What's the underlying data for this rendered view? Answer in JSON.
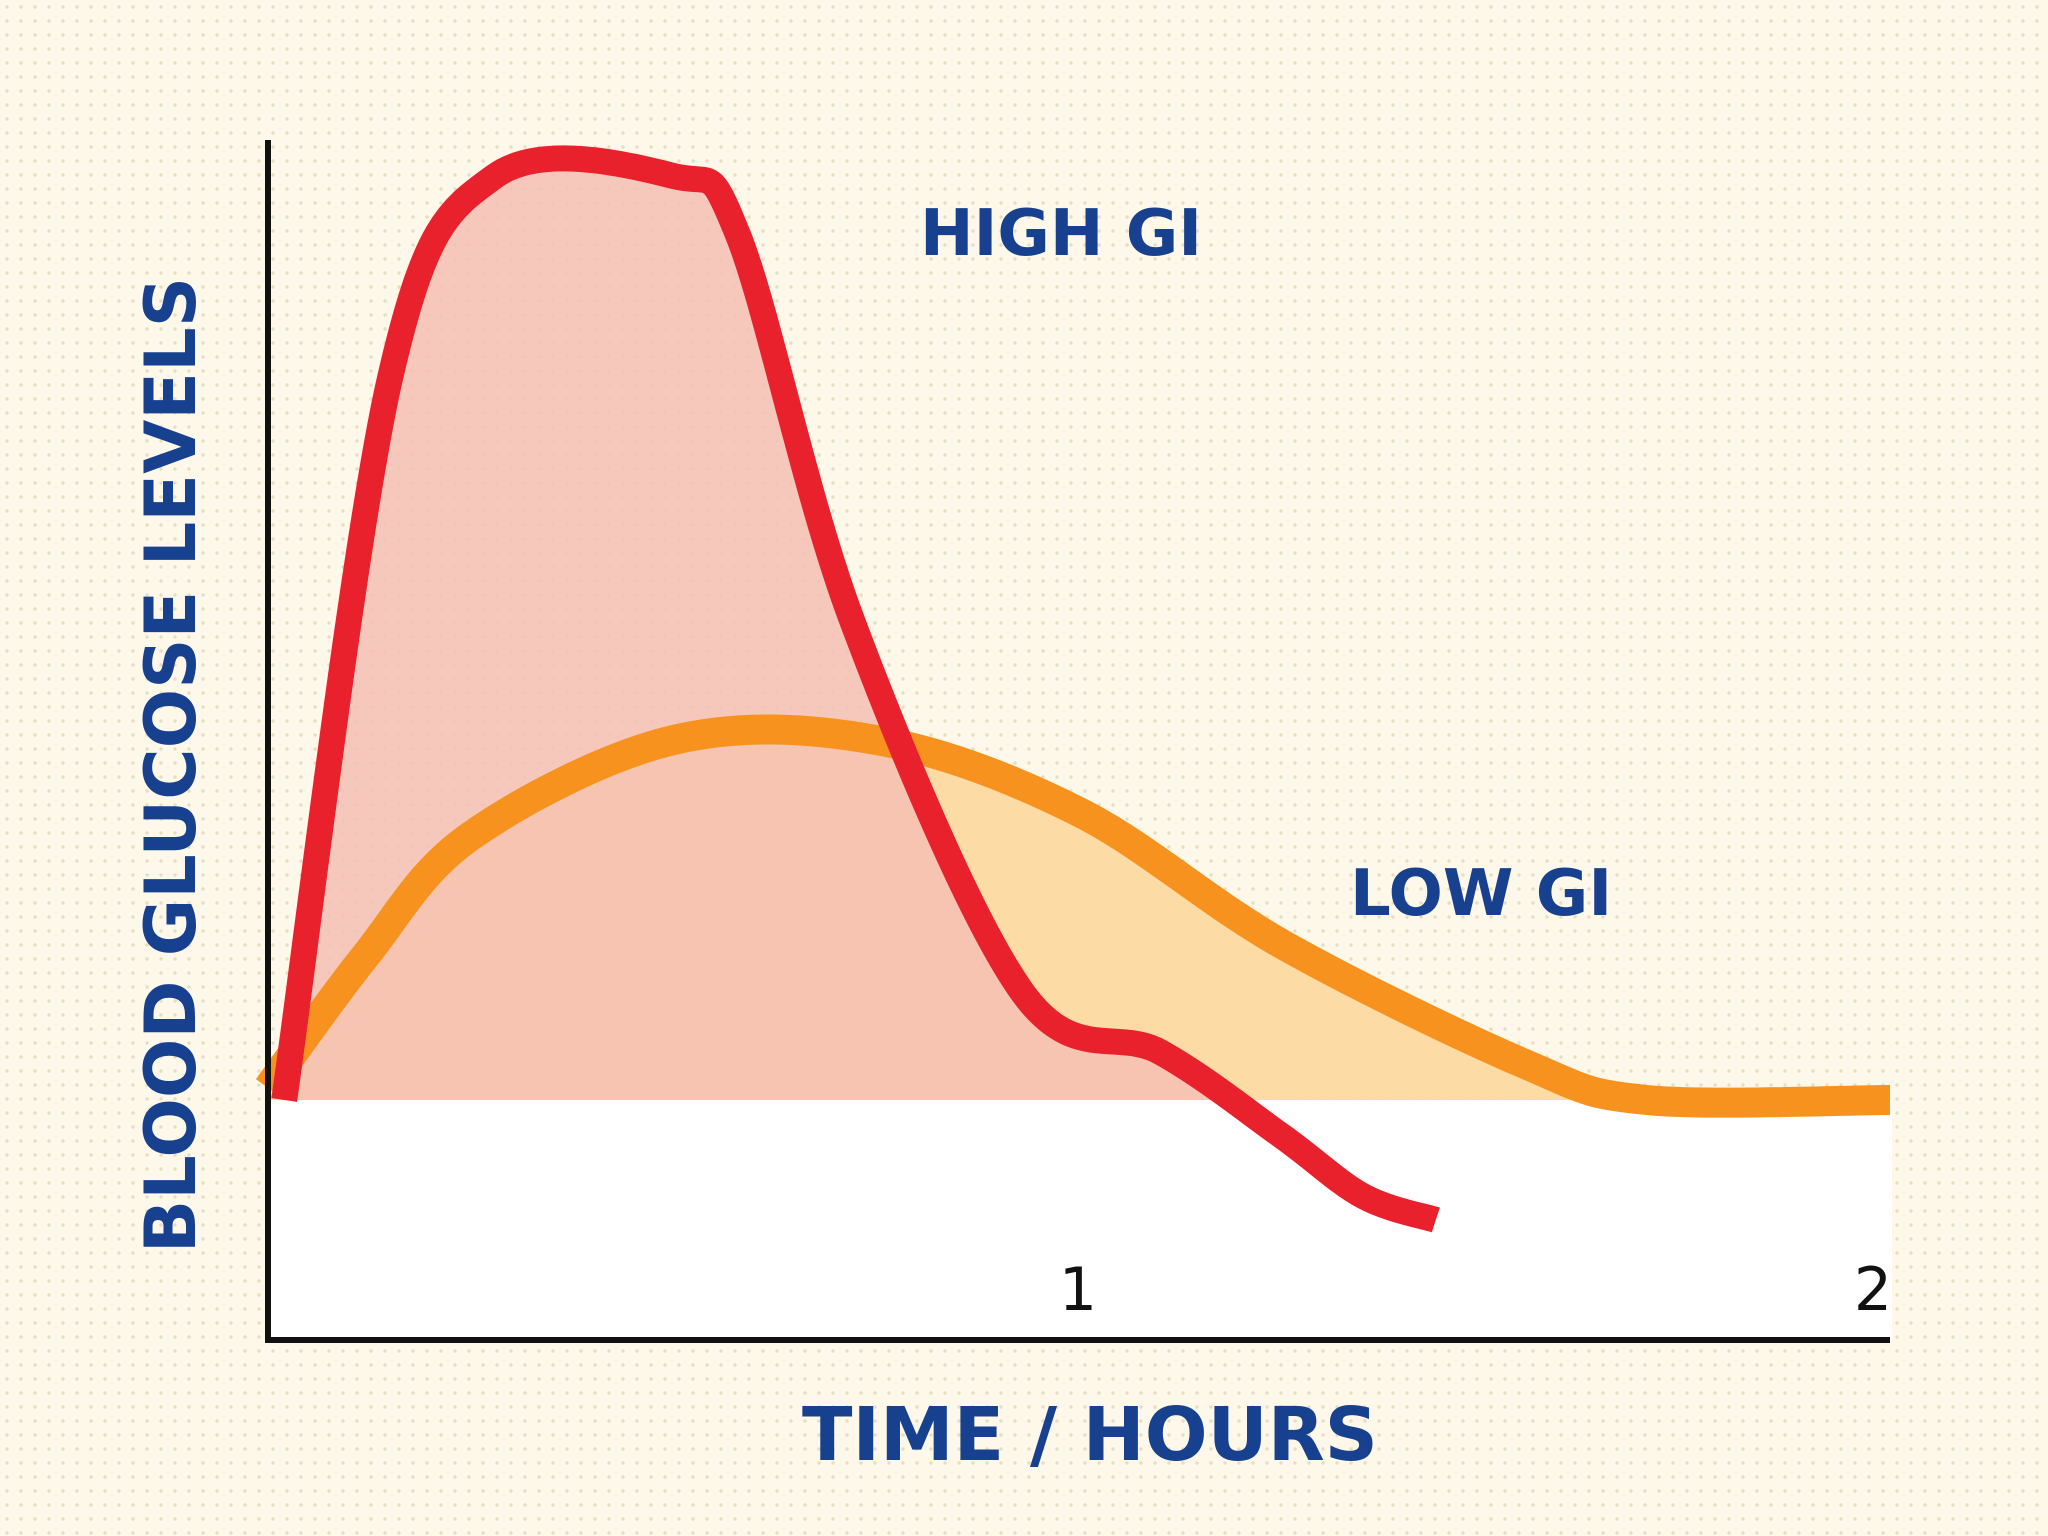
{
  "chart_data": {
    "type": "line",
    "title": "",
    "xlabel": "TIME / HOURS",
    "ylabel": "BLOOD GLUCOSE LEVELS",
    "x_ticks": [
      "1",
      "2"
    ],
    "xlim": [
      0,
      2
    ],
    "ylim": [
      0,
      1
    ],
    "baseline": 0.2,
    "grid": false,
    "series": [
      {
        "name": "HIGH GI",
        "color": "#e8212d",
        "fill": "#f4bfb4",
        "points": [
          [
            0.02,
            0.2
          ],
          [
            0.15,
            0.8
          ],
          [
            0.28,
            0.97
          ],
          [
            0.5,
            0.97
          ],
          [
            0.58,
            0.92
          ],
          [
            0.72,
            0.6
          ],
          [
            0.93,
            0.29
          ],
          [
            1.1,
            0.24
          ],
          [
            1.25,
            0.17
          ],
          [
            1.35,
            0.12
          ],
          [
            1.44,
            0.1
          ]
        ]
      },
      {
        "name": "LOW GI",
        "color": "#f7921e",
        "fill": "#fcd9a0",
        "points": [
          [
            0.0,
            0.21
          ],
          [
            0.12,
            0.32
          ],
          [
            0.25,
            0.42
          ],
          [
            0.5,
            0.5
          ],
          [
            0.75,
            0.5
          ],
          [
            1.0,
            0.44
          ],
          [
            1.25,
            0.33
          ],
          [
            1.55,
            0.23
          ],
          [
            1.7,
            0.2
          ],
          [
            2.0,
            0.2
          ]
        ]
      }
    ]
  }
}
